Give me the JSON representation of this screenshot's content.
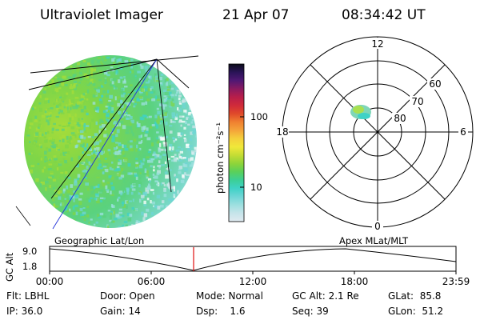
{
  "header": {
    "title": "Ultraviolet Imager",
    "date": "21 Apr 07",
    "time": "08:34:42 UT"
  },
  "colorbar": {
    "label": "photon cm⁻²s⁻¹",
    "ticks": [
      "100",
      "10"
    ],
    "colors": [
      "#e0eaf0",
      "#c6e4ea",
      "#9ee0e0",
      "#6fd6d6",
      "#3fd2c6",
      "#3ccf96",
      "#5ad05a",
      "#8ed43a",
      "#c4dc34",
      "#f0e83a",
      "#f4d03c",
      "#f4a43a",
      "#f08030",
      "#e04a2a",
      "#d02a3a",
      "#b81e4a",
      "#8a1a60",
      "#501874",
      "#2a1458",
      "#0c0c1a"
    ]
  },
  "polar": {
    "mlt_labels": {
      "top": "12",
      "right": "6",
      "bottom": "0",
      "left": "18"
    },
    "lat_labels": [
      "60",
      "70",
      "80"
    ]
  },
  "timeline": {
    "left_label": "Geographic Lat/Lon",
    "right_label": "Apex MLat/MLT",
    "axis_title": "GC Alt",
    "y_ticks": [
      "9.0",
      "1.8"
    ],
    "x_ticks": [
      "00:00",
      "06:00",
      "12:00",
      "18:00",
      "23:59"
    ]
  },
  "info": {
    "row1": [
      "Flt: LBHL",
      "Door: Open",
      "Mode: Normal",
      "GC Alt: 2.1 Re",
      "GLat:  85.8"
    ],
    "row2": [
      "IP: 36.0",
      "Gain: 14",
      "Dsp:    1.6",
      "Seq: 39",
      "GLon:  51.2"
    ]
  }
}
